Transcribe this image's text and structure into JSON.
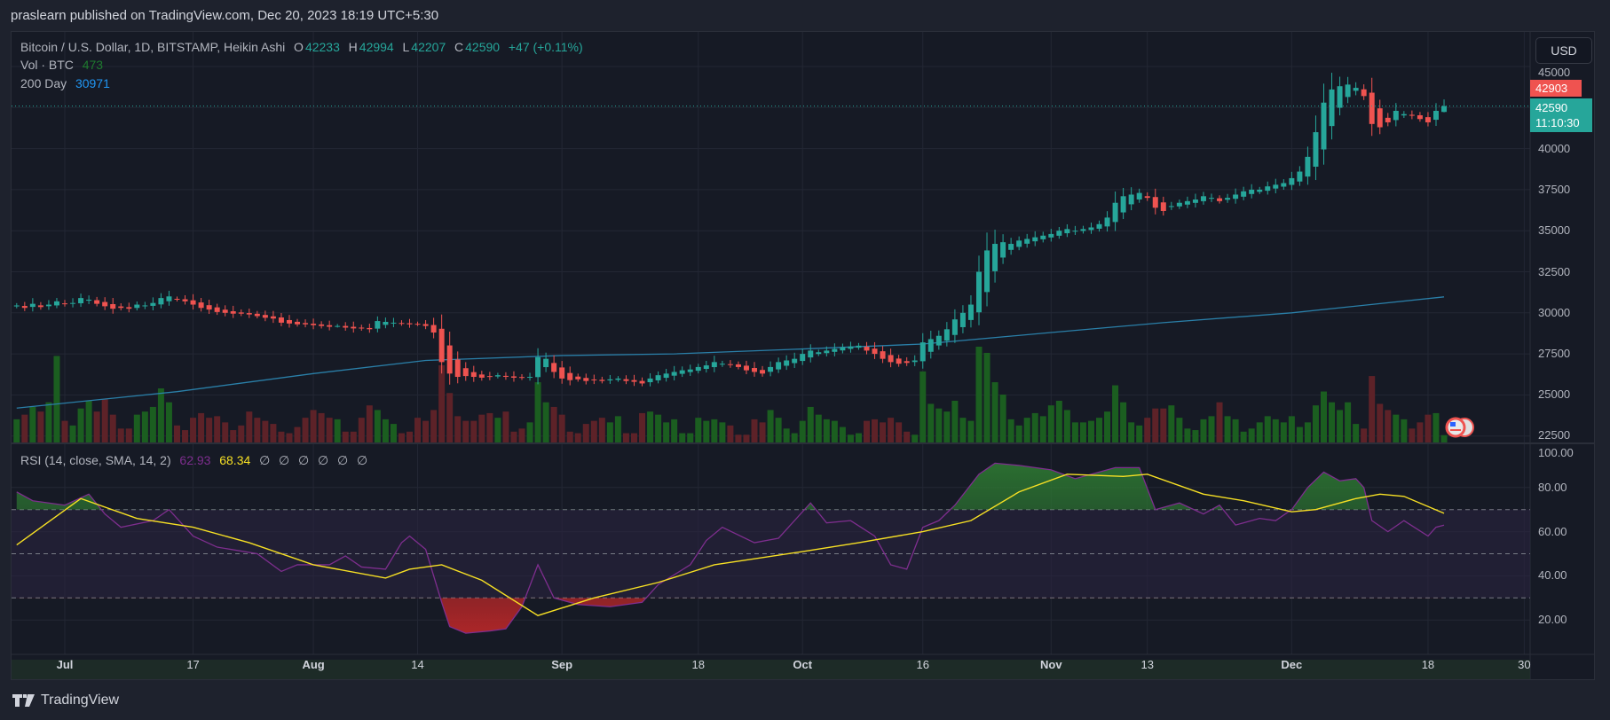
{
  "header": {
    "published": "praslearn published on TradingView.com, Dec 20, 2023 18:19 UTC+5:30"
  },
  "legend": {
    "symbol": "Bitcoin / U.S. Dollar, 1D, BITSTAMP, Heikin Ashi",
    "o_label": "O",
    "o": "42233",
    "h_label": "H",
    "h": "42994",
    "l_label": "L",
    "l": "42207",
    "c_label": "C",
    "c": "42590",
    "change": "+47 (+0.11%)",
    "vol_label": "Vol · BTC",
    "vol_value": "473",
    "ma_label": "200 Day",
    "ma_value": "30971",
    "rsi_label": "RSI (14, close, SMA, 14, 2)",
    "rsi_value": "62.93",
    "rsi_sma_value": "68.34",
    "rsi_na": [
      "∅",
      "∅",
      "∅",
      "∅",
      "∅",
      "∅"
    ]
  },
  "price_axis": {
    "currency": "USD",
    "ticks": [
      "45000",
      "40000",
      "37500",
      "35000",
      "32500",
      "30000",
      "27500",
      "25000",
      "22500"
    ],
    "high_label": "42903",
    "last_label": "42590",
    "countdown": "11:10:30"
  },
  "rsi_axis": {
    "ticks": [
      "100.00",
      "80.00",
      "60.00",
      "40.00",
      "20.00"
    ]
  },
  "time_axis": {
    "labels": [
      {
        "text": "Jul",
        "date": "2023-07-01",
        "bold": true
      },
      {
        "text": "17",
        "date": "2023-07-17"
      },
      {
        "text": "Aug",
        "date": "2023-08-01",
        "bold": true
      },
      {
        "text": "14",
        "date": "2023-08-14"
      },
      {
        "text": "Sep",
        "date": "2023-09-01",
        "bold": true
      },
      {
        "text": "18",
        "date": "2023-09-18"
      },
      {
        "text": "Oct",
        "date": "2023-10-01",
        "bold": true
      },
      {
        "text": "16",
        "date": "2023-10-16"
      },
      {
        "text": "Nov",
        "date": "2023-11-01",
        "bold": true
      },
      {
        "text": "13",
        "date": "2023-11-13"
      },
      {
        "text": "Dec",
        "date": "2023-12-01",
        "bold": true
      },
      {
        "text": "18",
        "date": "2023-12-18"
      },
      {
        "text": "30",
        "date": "2023-12-30"
      }
    ]
  },
  "footer": {
    "brand": "TradingView"
  },
  "colors": {
    "up": "#26a69a",
    "down": "#ef5350",
    "vol_up": "#1b5e20",
    "vol_down": "#5d2228",
    "ma": "#2a7fa8",
    "rsi": "#7e2e8e",
    "rsi_sma": "#f7e024",
    "band": "#2a2340"
  },
  "chart_data": {
    "type": "candlestick",
    "style": "Heikin Ashi",
    "start_date": "2023-06-25",
    "ylim": [
      22500,
      45000
    ],
    "close": [
      30450,
      30300,
      30550,
      30350,
      30500,
      30700,
      30550,
      30600,
      30900,
      30800,
      30550,
      30400,
      30250,
      30300,
      30250,
      30500,
      30450,
      30600,
      30900,
      31000,
      30800,
      30700,
      30500,
      30300,
      30200,
      30050,
      30000,
      29950,
      29950,
      29900,
      29800,
      29700,
      29650,
      29400,
      29350,
      29300,
      29300,
      29250,
      29200,
      29150,
      29200,
      29100,
      29050,
      29050,
      29000,
      29500,
      29450,
      29400,
      29350,
      29300,
      29300,
      29200,
      28800,
      27000,
      26300,
      26100,
      26150,
      26100,
      26050,
      26100,
      26200,
      26100,
      26050,
      26050,
      26100,
      27300,
      27200,
      26400,
      26000,
      25900,
      25950,
      25850,
      25900,
      25850,
      25950,
      26000,
      25850,
      25800,
      25700,
      26000,
      26200,
      26300,
      26400,
      26500,
      26550,
      26700,
      26800,
      27000,
      26900,
      26850,
      26700,
      26500,
      26400,
      26300,
      26700,
      27000,
      27100,
      27200,
      27500,
      27700,
      27600,
      27700,
      27800,
      27900,
      27950,
      28000,
      27700,
      27500,
      27200,
      27000,
      26900,
      26950,
      27100,
      28200,
      28400,
      28600,
      29000,
      29600,
      30000,
      30500,
      32500,
      33800,
      34200,
      34300,
      34200,
      34400,
      34500,
      34600,
      34700,
      34800,
      35000,
      35100,
      35000,
      35100,
      35200,
      35400,
      35800,
      36700,
      37100,
      37200,
      37300,
      37000,
      36400,
      36200,
      36500,
      36700,
      36800,
      36900,
      37100,
      37000,
      36800,
      37000,
      37200,
      37400,
      37500,
      37500,
      37700,
      37800,
      37900,
      38200,
      38600,
      39500,
      41000,
      42800,
      43600,
      43800,
      43900,
      43700,
      43200,
      41500,
      41300,
      41600,
      42300,
      42100,
      42000,
      41800,
      41600,
      42300,
      42590
    ],
    "last_candle": {
      "open": 42233,
      "high": 42994,
      "low": 42207,
      "close": 42590
    },
    "volume": [
      1500,
      1800,
      2300,
      2000,
      2600,
      5600,
      1400,
      1100,
      2200,
      2700,
      2000,
      2800,
      1800,
      900,
      900,
      1800,
      2000,
      2300,
      3500,
      2600,
      1100,
      800,
      1600,
      1900,
      1600,
      1700,
      1300,
      800,
      1100,
      2000,
      1600,
      1400,
      1200,
      700,
      600,
      1000,
      1600,
      2100,
      1900,
      1600,
      1500,
      700,
      700,
      1600,
      2400,
      2100,
      1500,
      1200,
      600,
      700,
      1600,
      1400,
      2100,
      5000,
      3200,
      1700,
      1400,
      1400,
      1800,
      1900,
      1600,
      2000,
      700,
      900,
      1300,
      3900,
      2600,
      2300,
      1800,
      700,
      600,
      1200,
      1400,
      1600,
      1300,
      1700,
      600,
      600,
      1900,
      2000,
      1800,
      1300,
      1500,
      600,
      600,
      1600,
      1400,
      1500,
      1300,
      1100,
      500,
      500,
      1500,
      1300,
      2100,
      1600,
      900,
      600,
      1400,
      2300,
      1800,
      1500,
      1400,
      1000,
      500,
      600,
      1400,
      1500,
      1300,
      1600,
      1300,
      700,
      500,
      4600,
      2500,
      2200,
      2000,
      2700,
      1600,
      1400,
      6200,
      5800,
      3900,
      3100,
      1500,
      1100,
      1600,
      1900,
      1700,
      2400,
      2700,
      2100,
      1300,
      1300,
      1400,
      1600,
      2000,
      3700,
      2600,
      1300,
      1100,
      1600,
      2200,
      2200,
      2400,
      1600,
      900,
      800,
      1500,
      1700,
      2600,
      1700,
      1500,
      700,
      900,
      1300,
      1700,
      1500,
      1300,
      1700,
      1000,
      1300,
      2400,
      3300,
      2600,
      2100,
      2600,
      1200,
      900,
      4300,
      2500,
      2100,
      1800,
      1500,
      900,
      1300,
      1800,
      1900,
      473
    ],
    "ma200": [
      [
        "2023-06-25",
        24200
      ],
      [
        "2023-07-15",
        25200
      ],
      [
        "2023-08-01",
        26300
      ],
      [
        "2023-08-15",
        27100
      ],
      [
        "2023-09-01",
        27400
      ],
      [
        "2023-09-15",
        27500
      ],
      [
        "2023-10-01",
        27800
      ],
      [
        "2023-10-16",
        28100
      ],
      [
        "2023-11-01",
        28800
      ],
      [
        "2023-11-15",
        29400
      ],
      [
        "2023-12-01",
        30000
      ],
      [
        "2023-12-20",
        30971
      ]
    ],
    "rsi": {
      "ylim": [
        0,
        100
      ],
      "bands": {
        "upper": 70,
        "middle": 50,
        "lower": 30
      },
      "rsi": [
        [
          "06-25",
          78
        ],
        [
          "06-27",
          74
        ],
        [
          "07-01",
          72
        ],
        [
          "07-04",
          77
        ],
        [
          "07-06",
          68
        ],
        [
          "07-08",
          62
        ],
        [
          "07-12",
          65
        ],
        [
          "07-14",
          70
        ],
        [
          "07-17",
          58
        ],
        [
          "07-20",
          53
        ],
        [
          "07-25",
          50
        ],
        [
          "07-28",
          42
        ],
        [
          "07-30",
          45
        ],
        [
          "08-03",
          45
        ],
        [
          "08-05",
          49
        ],
        [
          "08-07",
          44
        ],
        [
          "08-10",
          43
        ],
        [
          "08-12",
          55
        ],
        [
          "08-13",
          58
        ],
        [
          "08-15",
          52
        ],
        [
          "08-17",
          28
        ],
        [
          "08-18",
          17
        ],
        [
          "08-20",
          14
        ],
        [
          "08-23",
          15
        ],
        [
          "08-25",
          16
        ],
        [
          "08-27",
          26
        ],
        [
          "08-29",
          45
        ],
        [
          "08-31",
          30
        ],
        [
          "09-03",
          27
        ],
        [
          "09-07",
          26
        ],
        [
          "09-11",
          28
        ],
        [
          "09-13",
          36
        ],
        [
          "09-17",
          45
        ],
        [
          "09-19",
          56
        ],
        [
          "09-21",
          62
        ],
        [
          "09-25",
          55
        ],
        [
          "09-28",
          57
        ],
        [
          "10-02",
          73
        ],
        [
          "10-04",
          64
        ],
        [
          "10-07",
          65
        ],
        [
          "10-10",
          58
        ],
        [
          "10-12",
          45
        ],
        [
          "10-14",
          43
        ],
        [
          "10-16",
          62
        ],
        [
          "10-18",
          65
        ],
        [
          "10-20",
          72
        ],
        [
          "10-23",
          86
        ],
        [
          "10-25",
          91
        ],
        [
          "10-28",
          90
        ],
        [
          "11-01",
          88
        ],
        [
          "11-04",
          84
        ],
        [
          "11-09",
          89
        ],
        [
          "11-12",
          89
        ],
        [
          "11-14",
          70
        ],
        [
          "11-17",
          73
        ],
        [
          "11-20",
          68
        ],
        [
          "11-22",
          72
        ],
        [
          "11-24",
          63
        ],
        [
          "11-27",
          66
        ],
        [
          "11-29",
          65
        ],
        [
          "12-01",
          70
        ],
        [
          "12-03",
          80
        ],
        [
          "12-05",
          87
        ],
        [
          "12-07",
          83
        ],
        [
          "12-09",
          84
        ],
        [
          "12-10",
          80
        ],
        [
          "12-11",
          65
        ],
        [
          "12-13",
          60
        ],
        [
          "12-15",
          65
        ],
        [
          "12-18",
          58
        ],
        [
          "12-19",
          62
        ],
        [
          "12-20",
          62.93
        ]
      ],
      "sma": [
        [
          "06-25",
          54
        ],
        [
          "07-03",
          75
        ],
        [
          "07-10",
          66
        ],
        [
          "07-17",
          62
        ],
        [
          "07-24",
          55
        ],
        [
          "08-01",
          45
        ],
        [
          "08-10",
          39
        ],
        [
          "08-13",
          43
        ],
        [
          "08-17",
          45
        ],
        [
          "08-22",
          38
        ],
        [
          "08-29",
          22
        ],
        [
          "09-05",
          30
        ],
        [
          "09-13",
          37
        ],
        [
          "09-20",
          45
        ],
        [
          "10-01",
          51
        ],
        [
          "10-08",
          55
        ],
        [
          "10-16",
          60
        ],
        [
          "10-22",
          65
        ],
        [
          "10-28",
          78
        ],
        [
          "11-03",
          86
        ],
        [
          "11-10",
          85
        ],
        [
          "11-13",
          86
        ],
        [
          "11-20",
          77
        ],
        [
          "11-25",
          74
        ],
        [
          "12-01",
          69
        ],
        [
          "12-04",
          70
        ],
        [
          "12-09",
          75
        ],
        [
          "12-12",
          77
        ],
        [
          "12-15",
          76
        ],
        [
          "12-20",
          68.34
        ]
      ]
    }
  }
}
